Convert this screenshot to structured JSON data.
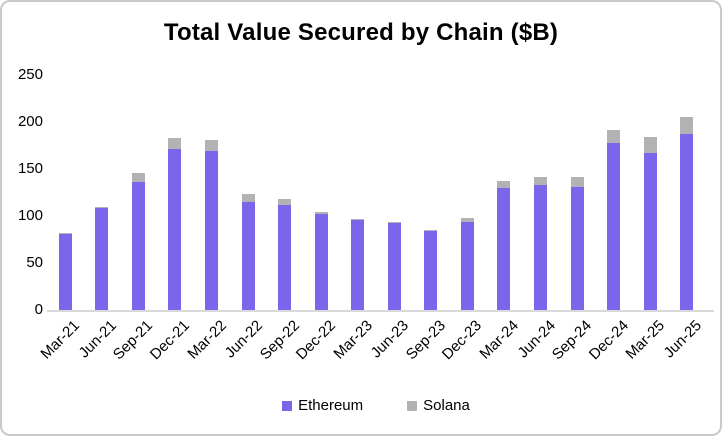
{
  "chart_data": {
    "type": "bar",
    "stacked": true,
    "title": "Total Value Secured by Chain ($B)",
    "categories": [
      "Mar-21",
      "Jun-21",
      "Sep-21",
      "Dec-21",
      "Mar-22",
      "Jun-22",
      "Sep-22",
      "Dec-22",
      "Mar-23",
      "Jun-23",
      "Sep-23",
      "Dec-23",
      "Mar-24",
      "Jun-24",
      "Sep-24",
      "Dec-24",
      "Mar-25",
      "Jun-25"
    ],
    "series": [
      {
        "name": "Ethereum",
        "color": "#7c64eb",
        "values": [
          81,
          108,
          136,
          171,
          169,
          115,
          112,
          102,
          96,
          93,
          84,
          94,
          130,
          133,
          131,
          178,
          167,
          187
        ]
      },
      {
        "name": "Solana",
        "color": "#b4b1b4",
        "values": [
          1,
          2,
          10,
          12,
          12,
          8,
          6,
          2,
          1,
          1,
          1,
          4,
          7,
          8,
          10,
          13,
          17,
          18
        ]
      }
    ],
    "xlabel": "",
    "ylabel": "",
    "ylim": [
      0,
      250
    ],
    "yticks": [
      0,
      50,
      100,
      150,
      200,
      250
    ],
    "grid": false,
    "legend_position": "bottom",
    "axis_line_color": "#d9d9d9",
    "text_color": "#000000",
    "background_color": "#ffffff"
  }
}
